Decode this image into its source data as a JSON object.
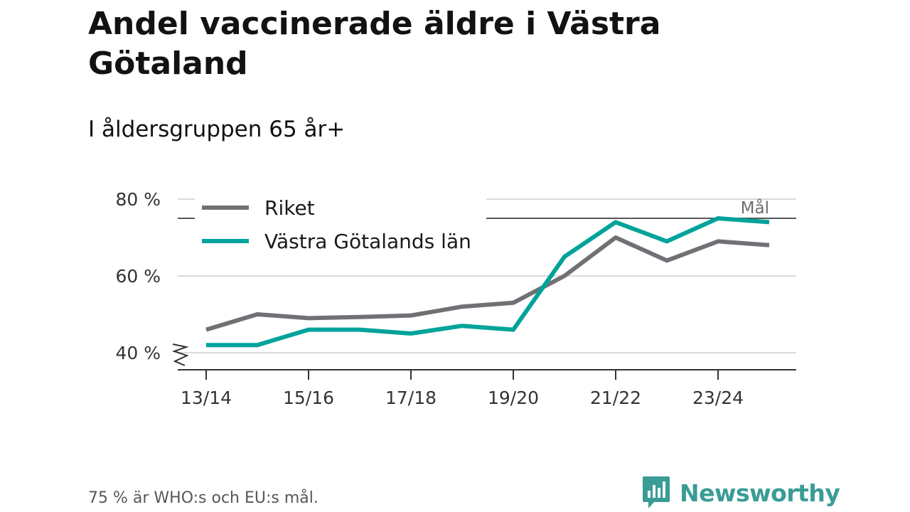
{
  "chart_data": {
    "type": "line",
    "title": "Andel vaccinerade äldre i Västra Götaland",
    "subtitle": "I åldersgruppen 65 år+",
    "xlabel": "",
    "ylabel": "",
    "x": [
      "13/14",
      "14/15",
      "15/16",
      "16/17",
      "17/18",
      "18/19",
      "19/20",
      "20/21",
      "21/22",
      "22/23",
      "23/24",
      "24/25"
    ],
    "x_tick_labels": [
      "13/14",
      "15/16",
      "17/18",
      "19/20",
      "21/22",
      "23/24"
    ],
    "y_ticks": [
      40,
      60,
      80
    ],
    "y_tick_labels": [
      "40 %",
      "60 %",
      "80 %"
    ],
    "ylim": [
      36,
      80
    ],
    "y_axis_break": true,
    "grid": true,
    "legend_position": "top-left",
    "series": [
      {
        "name": "Riket",
        "color": "#717075",
        "values": [
          46,
          50,
          49,
          49.3,
          49.7,
          52,
          53,
          60,
          70,
          64,
          69,
          68
        ]
      },
      {
        "name": "Västra Götalands län",
        "color": "#00a39a",
        "values": [
          42,
          42,
          46,
          46,
          45,
          47,
          46,
          65,
          74,
          69,
          75,
          74
        ]
      }
    ],
    "reference_line": {
      "value": 75,
      "label": "Mål",
      "color": "#55575a"
    }
  },
  "footnote": "75 % är WHO:s och EU:s mål.",
  "brand": {
    "name": "Newsworthy",
    "color": "#3a9c96"
  }
}
